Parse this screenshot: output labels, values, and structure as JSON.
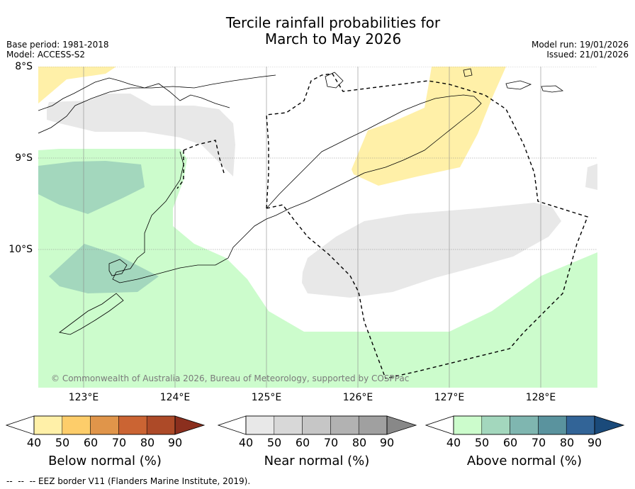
{
  "title": {
    "line1": "Tercile rainfall probabilities for",
    "line2": "March to May 2026"
  },
  "header_left": {
    "base_period": "Base period: 1981-2018",
    "model": "Model: ACCESS-S2"
  },
  "header_right": {
    "model_run": "Model run: 19/01/2026",
    "issued": "Issued: 21/01/2026"
  },
  "map": {
    "lat_labels": [
      "8°S",
      "9°S",
      "10°S"
    ],
    "lon_labels": [
      "123°E",
      "124°E",
      "125°E",
      "126°E",
      "127°E",
      "128°E"
    ],
    "copyright": "© Commonwealth of Australia 2026, Bureau of Meteorology, supported by COSPPac"
  },
  "colorbars": [
    {
      "label": "Below normal (%)",
      "ticks": [
        "40",
        "50",
        "60",
        "70",
        "80",
        "90"
      ],
      "colors": [
        "#fff0a8",
        "#fdcd6a",
        "#e0954a",
        "#cb6433",
        "#ad4a28",
        "#8b2f1e"
      ]
    },
    {
      "label": "Near normal (%)",
      "ticks": [
        "40",
        "50",
        "60",
        "70",
        "80",
        "90"
      ],
      "colors": [
        "#e8e8e8",
        "#d8d8d8",
        "#c6c6c6",
        "#b2b2b2",
        "#a0a0a0",
        "#888888"
      ]
    },
    {
      "label": "Above normal (%)",
      "ticks": [
        "40",
        "50",
        "60",
        "70",
        "80",
        "90"
      ],
      "colors": [
        "#ccfccc",
        "#a3d7bd",
        "#7fb6b0",
        "#5a939e",
        "#326497",
        "#1a4a7a"
      ]
    }
  ],
  "footer": {
    "eez_note": "--  --  -- EEZ border V11 (Flanders Marine Institute, 2019)."
  }
}
